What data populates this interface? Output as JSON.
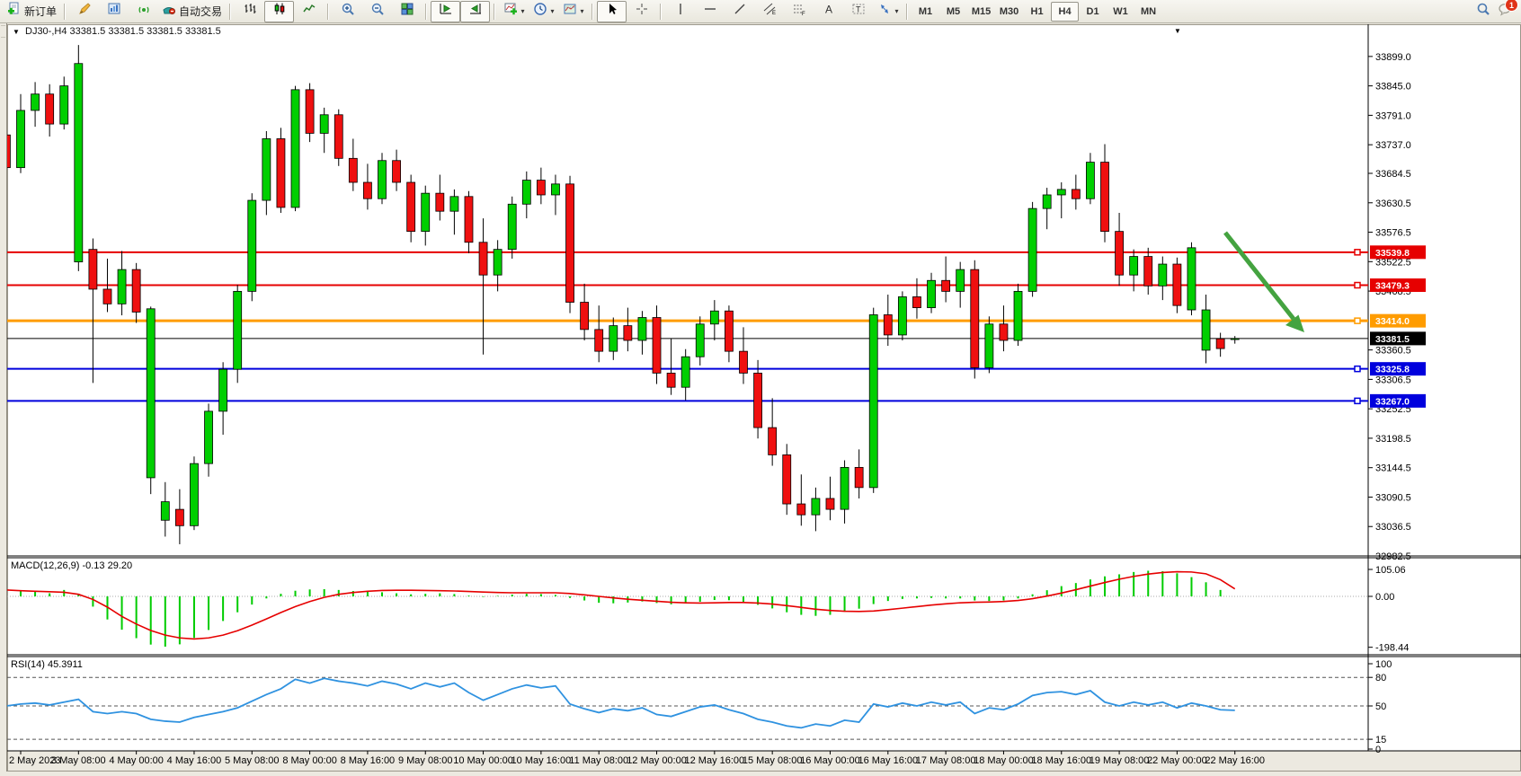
{
  "toolbar": {
    "groups": [
      {
        "items": [
          {
            "name": "new-order-button",
            "icon": "new-order-icon",
            "label": "新订单"
          }
        ]
      },
      {
        "items": [
          {
            "name": "styler-button",
            "icon": "styler-icon"
          },
          {
            "name": "profiles-button",
            "icon": "profiles-icon"
          },
          {
            "name": "alerts-button",
            "icon": "signal-icon"
          },
          {
            "name": "autotrade-button",
            "icon": "autotrade-icon",
            "label": "自动交易"
          }
        ]
      },
      {
        "items": [
          {
            "name": "bar-chart-button",
            "icon": "bar-chart-icon"
          },
          {
            "name": "candlestick-button",
            "icon": "candlestick-icon",
            "pressed": true
          },
          {
            "name": "line-chart-button",
            "icon": "line-chart-icon"
          }
        ]
      },
      {
        "items": [
          {
            "name": "zoom-in-button",
            "icon": "zoom-in-icon"
          },
          {
            "name": "zoom-out-button",
            "icon": "zoom-out-icon"
          },
          {
            "name": "tile-windows-button",
            "icon": "tile-windows-icon"
          }
        ]
      },
      {
        "items": [
          {
            "name": "auto-scroll-button",
            "icon": "auto-scroll-icon",
            "pressed": true
          },
          {
            "name": "chart-shift-button",
            "icon": "chart-shift-icon",
            "pressed": true
          }
        ]
      },
      {
        "items": [
          {
            "name": "indicators-button",
            "icon": "indicators-icon",
            "dropdown": true
          },
          {
            "name": "periods-button",
            "icon": "clock-icon",
            "dropdown": true
          },
          {
            "name": "templates-button",
            "icon": "templates-icon",
            "dropdown": true
          }
        ]
      },
      {
        "items": [
          {
            "name": "cursor-button",
            "icon": "cursor-icon",
            "pressed": true
          },
          {
            "name": "crosshair-button",
            "icon": "crosshair-icon"
          }
        ]
      },
      {
        "items": [
          {
            "name": "vertical-line-button",
            "icon": "vertical-line-icon"
          },
          {
            "name": "horizontal-line-button",
            "icon": "horizontal-line-icon"
          },
          {
            "name": "trendline-button",
            "icon": "trendline-icon"
          },
          {
            "name": "channel-button",
            "icon": "channel-icon"
          },
          {
            "name": "fibonacci-button",
            "icon": "fibonacci-icon"
          },
          {
            "name": "text-button",
            "icon": "text-icon"
          },
          {
            "name": "text-label-button",
            "icon": "text-label-icon"
          },
          {
            "name": "arrows-button",
            "icon": "arrows-icon",
            "dropdown": true
          }
        ]
      }
    ],
    "timeframes": [
      "M1",
      "M5",
      "M15",
      "M30",
      "H1",
      "H4",
      "D1",
      "W1",
      "MN"
    ],
    "active_timeframe": "H4",
    "notification_count": "1"
  },
  "chart": {
    "title": "DJ30-,H4",
    "ohlc_text": "33381.5 33381.5 33381.5 33381.5",
    "price_axis_labels": [
      {
        "text": "33899.0",
        "value": 33899.0
      },
      {
        "text": "33845.0",
        "value": 33845.0
      },
      {
        "text": "33791.0",
        "value": 33791.0
      },
      {
        "text": "33737.0",
        "value": 33737.0
      },
      {
        "text": "33684.5",
        "value": 33684.5
      },
      {
        "text": "33630.5",
        "value": 33630.5
      },
      {
        "text": "33576.5",
        "value": 33576.5
      },
      {
        "text": "33522.5",
        "value": 33522.5
      },
      {
        "text": "33468.5",
        "value": 33468.5
      },
      {
        "text": "33360.5",
        "value": 33360.5
      },
      {
        "text": "33306.5",
        "value": 33306.5
      },
      {
        "text": "33252.5",
        "value": 33252.5
      },
      {
        "text": "33198.5",
        "value": 33198.5
      },
      {
        "text": "33144.5",
        "value": 33144.5
      },
      {
        "text": "33090.5",
        "value": 33090.5
      },
      {
        "text": "33036.5",
        "value": 33036.5
      },
      {
        "text": "32982.5",
        "value": 32982.5
      }
    ],
    "levels": [
      {
        "label": "33539.8",
        "value": 33539.8,
        "color": "#e60000",
        "width": 2
      },
      {
        "label": "33479.3",
        "value": 33479.3,
        "color": "#e60000",
        "width": 2
      },
      {
        "label": "33414.0",
        "value": 33414.0,
        "color": "#ff9c00",
        "width": 3
      },
      {
        "label": "33381.5",
        "value": 33381.5,
        "color": "#000000",
        "width": 1,
        "current": true
      },
      {
        "label": "33325.8",
        "value": 33325.8,
        "color": "#0000dd",
        "width": 2
      },
      {
        "label": "33267.0",
        "value": 33267.0,
        "color": "#0000dd",
        "width": 2
      }
    ],
    "time_labels": [
      "2 May 2023",
      "3 May 08:00",
      "4 May 00:00",
      "4 May 16:00",
      "5 May 08:00",
      "8 May 00:00",
      "8 May 16:00",
      "9 May 08:00",
      "10 May 00:00",
      "10 May 16:00",
      "11 May 08:00",
      "12 May 00:00",
      "12 May 16:00",
      "15 May 08:00",
      "16 May 00:00",
      "16 May 16:00",
      "17 May 08:00",
      "18 May 00:00",
      "18 May 16:00",
      "19 May 08:00",
      "22 May 00:00",
      "22 May 16:00"
    ],
    "annotation_arrow": {
      "color": "#44a340",
      "direction": "down-right"
    },
    "candle_up_color": "#00cf00",
    "candle_down_color": "#ef1010"
  },
  "chart_data": {
    "type": "candlestick",
    "symbol": "DJ30-",
    "period": "H4",
    "price_range": [
      32982.5,
      33935
    ],
    "candles": [
      [
        33755,
        33800,
        33680,
        33695
      ],
      [
        33695,
        33830,
        33685,
        33800
      ],
      [
        33800,
        33852,
        33770,
        33830
      ],
      [
        33830,
        33848,
        33752,
        33775
      ],
      [
        33775,
        33862,
        33765,
        33845
      ],
      [
        33522,
        33920,
        33505,
        33886
      ],
      [
        33545,
        33565,
        33300,
        33472
      ],
      [
        33472,
        33528,
        33430,
        33445
      ],
      [
        33445,
        33542,
        33424,
        33508
      ],
      [
        33508,
        33520,
        33410,
        33430
      ],
      [
        33126,
        33440,
        33096,
        33436
      ],
      [
        33048,
        33118,
        33018,
        33082
      ],
      [
        33068,
        33105,
        33004,
        33038
      ],
      [
        33038,
        33165,
        33030,
        33152
      ],
      [
        33152,
        33262,
        33128,
        33248
      ],
      [
        33248,
        33338,
        33205,
        33325
      ],
      [
        33325,
        33480,
        33300,
        33468
      ],
      [
        33468,
        33648,
        33450,
        33635
      ],
      [
        33635,
        33762,
        33608,
        33748
      ],
      [
        33748,
        33768,
        33612,
        33622
      ],
      [
        33622,
        33845,
        33615,
        33838
      ],
      [
        33838,
        33850,
        33742,
        33758
      ],
      [
        33758,
        33805,
        33722,
        33792
      ],
      [
        33792,
        33802,
        33698,
        33712
      ],
      [
        33712,
        33748,
        33652,
        33668
      ],
      [
        33668,
        33702,
        33618,
        33638
      ],
      [
        33638,
        33722,
        33628,
        33708
      ],
      [
        33708,
        33728,
        33652,
        33668
      ],
      [
        33668,
        33682,
        33558,
        33578
      ],
      [
        33578,
        33662,
        33552,
        33648
      ],
      [
        33648,
        33682,
        33598,
        33615
      ],
      [
        33615,
        33655,
        33572,
        33642
      ],
      [
        33642,
        33652,
        33538,
        33558
      ],
      [
        33558,
        33602,
        33352,
        33498
      ],
      [
        33498,
        33562,
        33468,
        33545
      ],
      [
        33545,
        33642,
        33528,
        33628
      ],
      [
        33628,
        33688,
        33602,
        33672
      ],
      [
        33672,
        33695,
        33628,
        33645
      ],
      [
        33645,
        33682,
        33608,
        33665
      ],
      [
        33665,
        33680,
        33428,
        33448
      ],
      [
        33448,
        33482,
        33378,
        33398
      ],
      [
        33398,
        33442,
        33338,
        33358
      ],
      [
        33358,
        33420,
        33342,
        33405
      ],
      [
        33405,
        33438,
        33358,
        33378
      ],
      [
        33378,
        33432,
        33352,
        33420
      ],
      [
        33420,
        33442,
        33298,
        33318
      ],
      [
        33318,
        33382,
        33278,
        33292
      ],
      [
        33292,
        33362,
        33268,
        33348
      ],
      [
        33348,
        33422,
        33332,
        33408
      ],
      [
        33408,
        33452,
        33378,
        33432
      ],
      [
        33432,
        33442,
        33338,
        33358
      ],
      [
        33358,
        33402,
        33298,
        33318
      ],
      [
        33318,
        33342,
        33198,
        33218
      ],
      [
        33218,
        33272,
        33148,
        33168
      ],
      [
        33168,
        33188,
        33058,
        33078
      ],
      [
        33078,
        33132,
        33038,
        33058
      ],
      [
        33058,
        33108,
        33028,
        33088
      ],
      [
        33088,
        33128,
        33048,
        33068
      ],
      [
        33068,
        33158,
        33042,
        33145
      ],
      [
        33145,
        33178,
        33088,
        33108
      ],
      [
        33108,
        33438,
        33098,
        33425
      ],
      [
        33425,
        33462,
        33368,
        33388
      ],
      [
        33388,
        33468,
        33378,
        33458
      ],
      [
        33458,
        33492,
        33418,
        33438
      ],
      [
        33438,
        33502,
        33428,
        33488
      ],
      [
        33488,
        33532,
        33448,
        33468
      ],
      [
        33468,
        33522,
        33438,
        33508
      ],
      [
        33508,
        33525,
        33308,
        33328
      ],
      [
        33328,
        33422,
        33318,
        33408
      ],
      [
        33408,
        33442,
        33358,
        33378
      ],
      [
        33378,
        33482,
        33368,
        33468
      ],
      [
        33468,
        33632,
        33458,
        33620
      ],
      [
        33620,
        33658,
        33582,
        33645
      ],
      [
        33645,
        33668,
        33602,
        33655
      ],
      [
        33655,
        33682,
        33618,
        33638
      ],
      [
        33638,
        33722,
        33628,
        33705
      ],
      [
        33705,
        33738,
        33558,
        33578
      ],
      [
        33578,
        33612,
        33478,
        33498
      ],
      [
        33498,
        33545,
        33468,
        33532
      ],
      [
        33532,
        33548,
        33462,
        33478
      ],
      [
        33478,
        33532,
        33452,
        33518
      ],
      [
        33518,
        33530,
        33428,
        33442
      ],
      [
        33434,
        33558,
        33424,
        33548
      ],
      [
        33360,
        33462,
        33336,
        33434
      ],
      [
        33381,
        33392,
        33348,
        33363
      ],
      [
        33380,
        33386,
        33372,
        33381.5
      ]
    ],
    "macd": {
      "label": "MACD(12,26,9)",
      "values_text": "-0.13 29.20",
      "axis_labels": [
        {
          "text": "105.06",
          "value": 105.06
        },
        {
          "text": "0.00",
          "value": 0
        },
        {
          "text": "-198.44",
          "value": -198.44
        }
      ],
      "histogram": [
        15,
        20,
        18,
        12,
        25,
        10,
        -40,
        -90,
        -130,
        -163,
        -188,
        -196,
        -187,
        -162,
        -131,
        -96,
        -62,
        -32,
        -8,
        10,
        22,
        27,
        28,
        25,
        21,
        18,
        16,
        12,
        8,
        10,
        12,
        9,
        3,
        -2,
        2,
        7,
        10,
        9,
        6,
        -6,
        -16,
        -25,
        -27,
        -24,
        -20,
        -26,
        -31,
        -28,
        -21,
        -14,
        -15,
        -22,
        -33,
        -47,
        -62,
        -72,
        -76,
        -72,
        -60,
        -48,
        -30,
        -18,
        -10,
        -8,
        -6,
        -8,
        -8,
        -16,
        -18,
        -16,
        -8,
        8,
        24,
        40,
        52,
        66,
        78,
        86,
        95,
        100,
        98,
        90,
        75,
        55,
        25,
        -0.13
      ],
      "signal": [
        25,
        22,
        20,
        18,
        16,
        8,
        -12,
        -42,
        -78,
        -108,
        -133,
        -151,
        -162,
        -166,
        -162,
        -151,
        -134,
        -112,
        -88,
        -63,
        -40,
        -20,
        -4,
        8,
        15,
        20,
        23,
        24,
        24,
        23,
        22,
        21,
        19,
        17,
        15,
        14,
        14,
        14,
        14,
        11,
        6,
        0,
        -6,
        -11,
        -15,
        -19,
        -23,
        -25,
        -26,
        -25,
        -24,
        -24,
        -26,
        -30,
        -36,
        -43,
        -50,
        -55,
        -58,
        -59,
        -57,
        -52,
        -46,
        -40,
        -34,
        -29,
        -25,
        -23,
        -22,
        -20,
        -16,
        -9,
        1,
        13,
        26,
        40,
        54,
        67,
        78,
        87,
        93,
        96,
        95,
        88,
        65,
        29.2
      ],
      "histogram_color": "#00cc00",
      "signal_color": "#e60000"
    },
    "rsi": {
      "label": "RSI(14)",
      "value_text": "45.3911",
      "axis_labels": [
        {
          "text": "100",
          "value": 100
        },
        {
          "text": "80",
          "value": 80
        },
        {
          "text": "50",
          "value": 50
        },
        {
          "text": "15",
          "value": 15
        },
        {
          "text": "0",
          "value": 0
        }
      ],
      "dashed_levels": [
        80,
        50,
        15
      ],
      "line_color": "#2f92e0",
      "values": [
        50,
        52,
        53,
        51,
        54,
        57,
        44,
        42,
        44,
        42,
        36,
        34,
        33,
        38,
        41,
        44,
        48,
        55,
        62,
        68,
        78,
        74,
        79,
        76,
        74,
        71,
        76,
        73,
        68,
        74,
        70,
        74,
        64,
        56,
        62,
        68,
        72,
        69,
        71,
        52,
        47,
        43,
        47,
        45,
        48,
        41,
        39,
        44,
        49,
        51,
        46,
        42,
        36,
        33,
        29,
        27,
        31,
        29,
        35,
        33,
        52,
        49,
        53,
        50,
        54,
        51,
        54,
        42,
        48,
        46,
        52,
        61,
        64,
        65,
        62,
        66,
        54,
        50,
        54,
        51,
        54,
        48,
        53,
        50,
        46,
        45.39
      ]
    }
  }
}
